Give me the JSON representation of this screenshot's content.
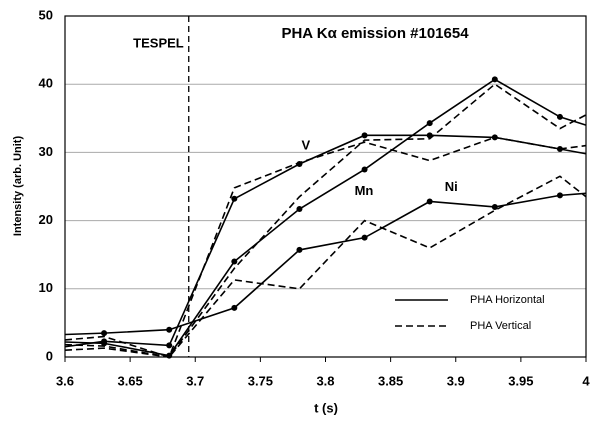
{
  "chart_data": {
    "type": "line",
    "title": "PHA Kα emission #101654",
    "x_label": "t (s)",
    "y_label": "Intensity (arb. Unit)",
    "x": [
      3.6,
      3.63,
      3.68,
      3.73,
      3.78,
      3.83,
      3.88,
      3.93,
      3.98,
      4
    ],
    "xlim": [
      3.6,
      4
    ],
    "xticks": [
      3.6,
      3.65,
      3.7,
      3.75,
      3.8,
      3.85,
      3.9,
      3.95,
      4
    ],
    "ylim": [
      0,
      50
    ],
    "yticks": [
      0,
      10,
      20,
      30,
      40,
      50
    ],
    "grid": true,
    "marker_line": {
      "label": "TESPEL",
      "x": 3.695
    },
    "groups": [
      {
        "name": "PHA Horizontal",
        "dash": false,
        "markers": true,
        "lines": [
          {
            "label": "V",
            "values": [
              1.5,
              2.3,
              1.7,
              23.2,
              28.3,
              32.5,
              32.5,
              32.2,
              30.5,
              29.8
            ]
          },
          {
            "label": "Mn",
            "values": [
              2.2,
              2.0,
              0.2,
              14,
              21.7,
              27.5,
              34.3,
              40.7,
              35.2,
              34
            ]
          },
          {
            "label": "Ni",
            "values": [
              3.3,
              3.5,
              4.0,
              7.2,
              15.7,
              17.5,
              22.8,
              22,
              23.7,
              24
            ]
          }
        ]
      },
      {
        "name": "PHA Vertical",
        "dash": true,
        "markers": false,
        "lines": [
          {
            "values": [
              1.0,
              1.3,
              0,
              24.8,
              28.5,
              31.5,
              28.8,
              32.2,
              30.5,
              31
            ]
          },
          {
            "values": [
              1.8,
              1.6,
              0,
              13,
              23.5,
              31.8,
              32,
              40,
              33.5,
              35.5
            ]
          },
          {
            "values": [
              2.5,
              3.0,
              0,
              11.3,
              10,
              20,
              16,
              21.5,
              26.5,
              23.5
            ]
          }
        ]
      }
    ]
  }
}
